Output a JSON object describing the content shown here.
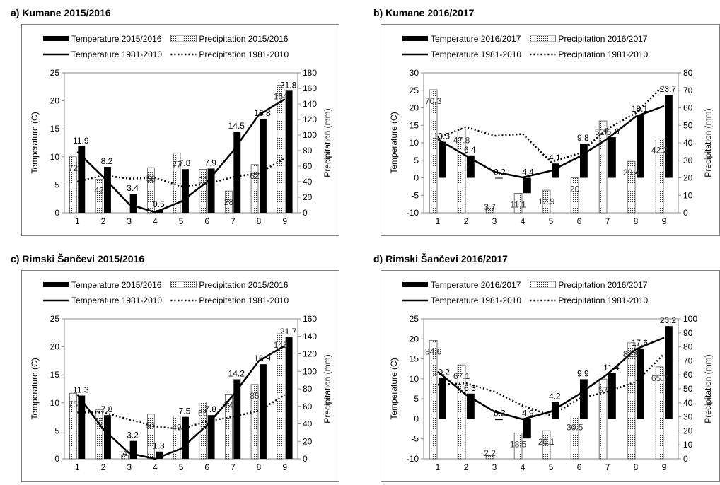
{
  "chart_data": [
    {
      "type": "bar",
      "title": "a) Kumane 2015/2016",
      "categories": [
        "1",
        "2",
        "3",
        "4",
        "5",
        "6",
        "7",
        "8",
        "9"
      ],
      "ylabel": "Temperature  (C)",
      "y2label": "Precipitation (mm)",
      "ylim": [
        0,
        25
      ],
      "yticks": [
        0,
        5,
        10,
        15,
        20,
        25
      ],
      "y2lim": [
        0,
        180
      ],
      "y2ticks": [
        0,
        20,
        40,
        60,
        80,
        100,
        120,
        140,
        160,
        180
      ],
      "legend": [
        "Temperature 2015/2016",
        "Precipitation 2015/2016",
        "Temperature 1981-2010",
        "Precipitation 1981-2010"
      ],
      "series": [
        {
          "name": "Temperature 2015/2016",
          "kind": "bar",
          "axis": "left",
          "values": [
            11.9,
            8.2,
            3.4,
            0.5,
            7.8,
            7.9,
            14.5,
            16.8,
            21.8
          ],
          "labels": [
            "11.9",
            "8.2",
            "3.4",
            "0.5",
            "7.8",
            "7.9",
            "14.5",
            "16.8",
            "21.8"
          ]
        },
        {
          "name": "Precipitation 2015/2016",
          "kind": "bar",
          "axis": "right",
          "values": [
            72,
            43,
            0,
            58,
            77,
            56,
            28,
            62,
            164
          ],
          "labels": [
            "72",
            "43",
            "",
            "58",
            "77",
            "56",
            "28",
            "62",
            "164"
          ]
        },
        {
          "name": "Temperature 1981-2010",
          "kind": "line",
          "axis": "left",
          "values": [
            10.9,
            6.4,
            1.5,
            0.1,
            2.0,
            5.5,
            11.0,
            17.5,
            20.3
          ]
        },
        {
          "name": "Precipitation 1981-2010",
          "kind": "dotted",
          "axis": "right",
          "values": [
            40,
            48,
            44,
            45,
            34,
            37,
            46,
            51,
            70
          ]
        }
      ]
    },
    {
      "type": "bar",
      "title": "b) Kumane 2016/2017",
      "categories": [
        "1",
        "2",
        "3",
        "4",
        "5",
        "6",
        "7",
        "8",
        "9"
      ],
      "ylabel": "Temperature  (C)",
      "y2label": "Precipitation (mm)",
      "ylim": [
        -10,
        30
      ],
      "yticks": [
        -10,
        -5,
        0,
        5,
        10,
        15,
        20,
        25,
        30
      ],
      "y2lim": [
        0,
        80
      ],
      "y2ticks": [
        0,
        10,
        20,
        30,
        40,
        50,
        60,
        70,
        80
      ],
      "legend": [
        "Temperature 2016/2017",
        "Precipitation 2016/2017",
        "Temperature 1981-2010",
        "Precipitation 1981-2010"
      ],
      "series": [
        {
          "name": "Temperature 2016/2017",
          "kind": "bar",
          "axis": "left",
          "values": [
            10.3,
            6.4,
            -0.2,
            -4.4,
            4.1,
            9.8,
            11.6,
            18.1,
            23.7
          ],
          "labels": [
            "10.3",
            "6.4",
            "-0.2",
            "-4.4",
            "4.1",
            "9.8",
            "11.6",
            "18.1",
            "23.7"
          ]
        },
        {
          "name": "Precipitation 2016/2017",
          "kind": "bar",
          "axis": "right",
          "values": [
            70.3,
            47.8,
            3.7,
            11.1,
            12.9,
            20,
            52.5,
            29.4,
            42.2
          ],
          "labels": [
            "70.3",
            "47.8",
            "3.7",
            "11.1",
            "12.9",
            "20",
            "52.5",
            "29.4",
            "42.2"
          ]
        },
        {
          "name": "Temperature 1981-2010",
          "kind": "line",
          "axis": "left",
          "values": [
            11.0,
            6.3,
            1.7,
            0.1,
            2.0,
            6.0,
            11.2,
            17.5,
            20.5
          ]
        },
        {
          "name": "Precipitation 1981-2010",
          "kind": "dotted",
          "axis": "right",
          "values": [
            43,
            49,
            44,
            45,
            29,
            34,
            48,
            57,
            73
          ]
        }
      ]
    },
    {
      "type": "bar",
      "title": "c) Rimski Šančevi 2015/2016",
      "categories": [
        "1",
        "2",
        "3",
        "4",
        "5",
        "6",
        "7",
        "8",
        "9"
      ],
      "ylabel": "Temperature  (C)",
      "y2label": "Precipitation (mm)",
      "ylim": [
        0,
        25
      ],
      "yticks": [
        0,
        5,
        10,
        15,
        20,
        25
      ],
      "y2lim": [
        0,
        160
      ],
      "y2ticks": [
        0,
        20,
        40,
        60,
        80,
        100,
        120,
        140,
        160
      ],
      "legend": [
        "Temperature 2015/2016",
        "Precipitation 2015/2016",
        "Temperature 1981-2010",
        "Precipitation 1981-2010"
      ],
      "series": [
        {
          "name": "Temperature 2015/2016",
          "kind": "bar",
          "axis": "left",
          "values": [
            11.3,
            7.8,
            3.2,
            1.3,
            7.5,
            7.8,
            14.2,
            16.9,
            21.7
          ],
          "labels": [
            "11.3",
            "7.8",
            "3.2",
            "1.3",
            "7.5",
            "7.8",
            "14.2",
            "16.9",
            "21.7"
          ]
        },
        {
          "name": "Precipitation 2015/2016",
          "kind": "bar",
          "axis": "right",
          "values": [
            75,
            56,
            4,
            51,
            49,
            65,
            74,
            85,
            143
          ],
          "labels": [
            "75",
            "56",
            "4",
            "51",
            "49",
            "65",
            "74",
            "85",
            "143"
          ]
        },
        {
          "name": "Temperature 1981-2010",
          "kind": "line",
          "axis": "left",
          "values": [
            11.5,
            5.3,
            1.0,
            0.0,
            1.8,
            6.0,
            11.3,
            17.5,
            20.2
          ]
        },
        {
          "name": "Precipitation 1981-2010",
          "kind": "dotted",
          "axis": "right",
          "values": [
            53,
            53,
            45,
            37,
            34,
            43,
            48,
            55,
            73
          ]
        }
      ]
    },
    {
      "type": "bar",
      "title": "d) Rimski Šančevi 2016/2017",
      "categories": [
        "1",
        "2",
        "3",
        "4",
        "5",
        "6",
        "7",
        "8",
        "9"
      ],
      "ylabel": "Temperature  (C)",
      "y2label": "Precipitation (mm)",
      "ylim": [
        -10,
        25
      ],
      "yticks": [
        -10,
        -5,
        0,
        5,
        10,
        15,
        20,
        25
      ],
      "y2lim": [
        0,
        100
      ],
      "y2ticks": [
        0,
        10,
        20,
        30,
        40,
        50,
        60,
        70,
        80,
        90,
        100
      ],
      "legend": [
        "Temperature 2016/2017",
        "Precipitation 2016/2017",
        "Temperature 1981-2010",
        "Precipitation 1981-2010"
      ],
      "series": [
        {
          "name": "Temperature 2016/2017",
          "kind": "bar",
          "axis": "left",
          "values": [
            10.2,
            6.3,
            -0.3,
            -4.9,
            4.2,
            9.9,
            11.4,
            17.6,
            23.2
          ],
          "labels": [
            "10.2",
            "6.3",
            "-0.3",
            "-4.9",
            "4.2",
            "9.9",
            "11.4",
            "17.6",
            "23.2"
          ]
        },
        {
          "name": "Precipitation 2016/2017",
          "kind": "bar",
          "axis": "right",
          "values": [
            84.6,
            67.1,
            2.2,
            18.5,
            20.1,
            30.5,
            57,
            82.9,
            65.7
          ],
          "labels": [
            "84.6",
            "67.1",
            "2.2",
            "18.5",
            "20.1",
            "30.5",
            "57",
            "82.9",
            "65.7"
          ]
        },
        {
          "name": "Temperature 1981-2010",
          "kind": "line",
          "axis": "left",
          "values": [
            11.8,
            6.0,
            1.8,
            -0.1,
            1.8,
            6.2,
            11.2,
            17.4,
            20.3
          ]
        },
        {
          "name": "Precipitation 1981-2010",
          "kind": "dotted",
          "axis": "right",
          "values": [
            53,
            54,
            48,
            38,
            31,
            43,
            48,
            55,
            75
          ]
        }
      ]
    }
  ]
}
